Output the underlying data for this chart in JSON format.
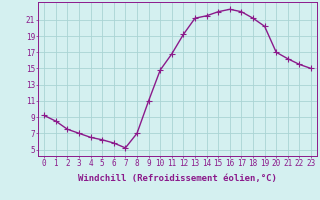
{
  "x": [
    0,
    1,
    2,
    3,
    4,
    5,
    6,
    7,
    8,
    9,
    10,
    11,
    12,
    13,
    14,
    15,
    16,
    17,
    18,
    19,
    20,
    21,
    22,
    23
  ],
  "y": [
    9.2,
    8.5,
    7.5,
    7.0,
    6.5,
    6.2,
    5.8,
    5.2,
    7.0,
    11.0,
    14.8,
    16.8,
    19.2,
    21.2,
    21.5,
    22.0,
    22.3,
    22.0,
    21.2,
    20.2,
    17.0,
    16.2,
    15.5,
    15.0
  ],
  "line_color": "#8B1A8B",
  "marker": "+",
  "marker_size": 4,
  "bg_color": "#d4f0f0",
  "grid_color": "#aad4d4",
  "xlabel": "Windchill (Refroidissement éolien,°C)",
  "ylabel": "",
  "xlim": [
    -0.5,
    23.5
  ],
  "ylim": [
    4.2,
    23.2
  ],
  "yticks": [
    5,
    7,
    9,
    11,
    13,
    15,
    17,
    19,
    21
  ],
  "xticks": [
    0,
    1,
    2,
    3,
    4,
    5,
    6,
    7,
    8,
    9,
    10,
    11,
    12,
    13,
    14,
    15,
    16,
    17,
    18,
    19,
    20,
    21,
    22,
    23
  ],
  "tick_color": "#8B1A8B",
  "tick_labelsize": 5.5,
  "xlabel_fontsize": 6.5,
  "line_width": 1.0
}
